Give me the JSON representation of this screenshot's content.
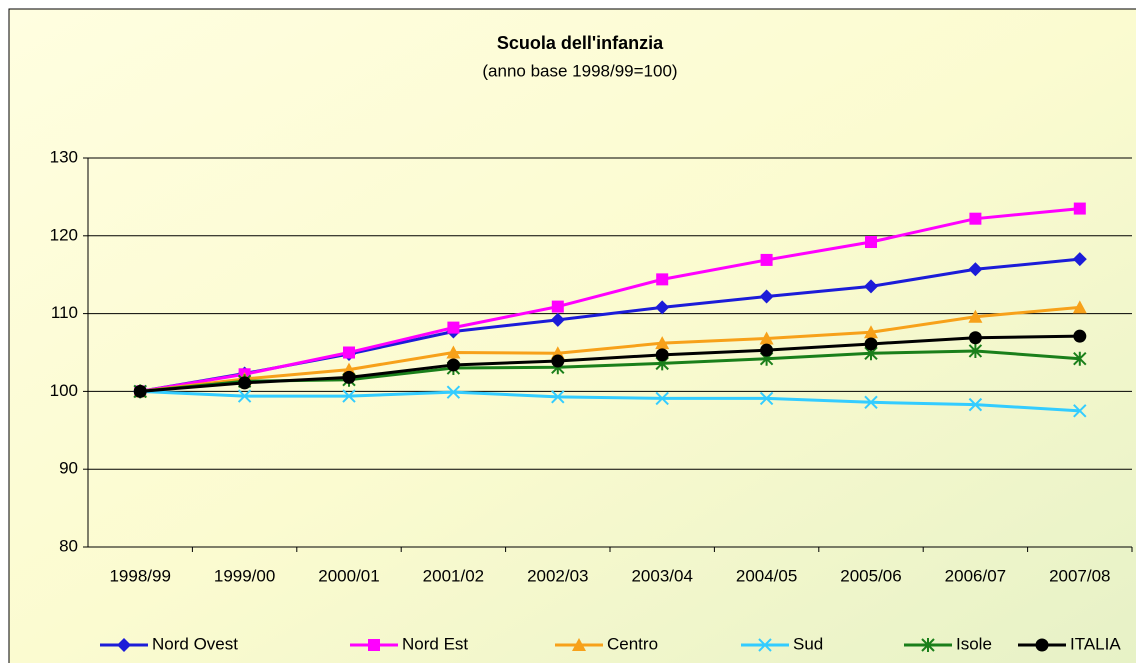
{
  "chart_data": {
    "type": "line",
    "title": "Scuola dell'infanzia",
    "subtitle": "(anno base 1998/99=100)",
    "categories": [
      "1998/99",
      "1999/00",
      "2000/01",
      "2001/02",
      "2002/03",
      "2003/04",
      "2004/05",
      "2005/06",
      "2006/07",
      "2007/08"
    ],
    "series": [
      {
        "name": "Nord Ovest",
        "color": "#1c1cd8",
        "marker": "diamond",
        "values": [
          100,
          102.3,
          104.8,
          107.7,
          109.2,
          110.8,
          112.2,
          113.5,
          115.7,
          117.0
        ]
      },
      {
        "name": "Nord Est",
        "color": "#ff00ff",
        "marker": "square",
        "values": [
          100,
          102.2,
          105.0,
          108.2,
          110.9,
          114.4,
          116.9,
          119.2,
          122.2,
          123.5
        ]
      },
      {
        "name": "Centro",
        "color": "#f7a11a",
        "marker": "triangle",
        "values": [
          100,
          101.6,
          102.8,
          105.0,
          104.9,
          106.2,
          106.8,
          107.6,
          109.6,
          110.8
        ]
      },
      {
        "name": "Sud",
        "color": "#33ccff",
        "marker": "x",
        "values": [
          100,
          99.4,
          99.4,
          99.9,
          99.3,
          99.1,
          99.1,
          98.6,
          98.3,
          97.5
        ]
      },
      {
        "name": "Isole",
        "color": "#1a7f1a",
        "marker": "star",
        "values": [
          100,
          101.3,
          101.5,
          103.0,
          103.1,
          103.6,
          104.2,
          104.9,
          105.2,
          104.2
        ]
      },
      {
        "name": "ITALIA",
        "color": "#000000",
        "marker": "circle",
        "values": [
          100,
          101.1,
          101.8,
          103.4,
          103.9,
          104.7,
          105.3,
          106.1,
          106.9,
          107.1
        ]
      }
    ],
    "ylim": [
      80,
      130
    ],
    "yticks": [
      80,
      90,
      100,
      110,
      120,
      130
    ],
    "grid": true,
    "legend": "bottom"
  }
}
